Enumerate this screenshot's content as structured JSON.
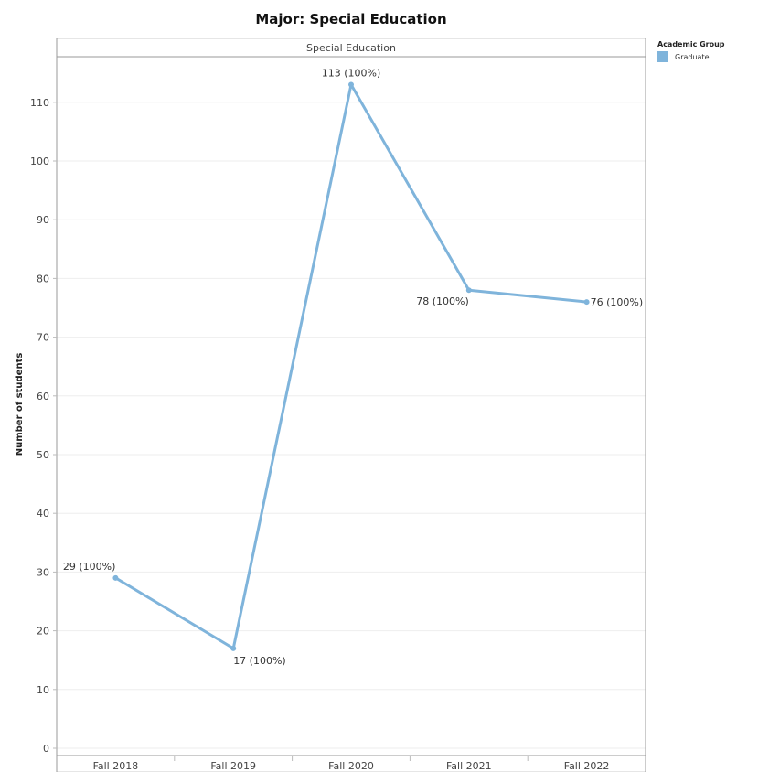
{
  "chart_data": {
    "type": "line",
    "title": "Major: Special Education",
    "panel_label": "Special Education",
    "ylabel": "Number of students",
    "xlabel": "",
    "categories": [
      "Fall 2018",
      "Fall 2019",
      "Fall 2020",
      "Fall 2021",
      "Fall 2022"
    ],
    "series": [
      {
        "name": "Graduate",
        "color": "#7fb4db",
        "values": [
          29,
          17,
          113,
          78,
          76
        ],
        "labels": [
          "29 (100%)",
          "17 (100%)",
          "113 (100%)",
          "78 (100%)",
          "76 (100%)"
        ]
      }
    ],
    "ylim": [
      0,
      119
    ],
    "yticks": [
      "0",
      "10",
      "20",
      "30",
      "40",
      "50",
      "60",
      "70",
      "80",
      "90",
      "100",
      "110"
    ],
    "grid": true,
    "legend": {
      "title": "Academic Group",
      "position": "right",
      "items": [
        "Graduate"
      ]
    }
  }
}
